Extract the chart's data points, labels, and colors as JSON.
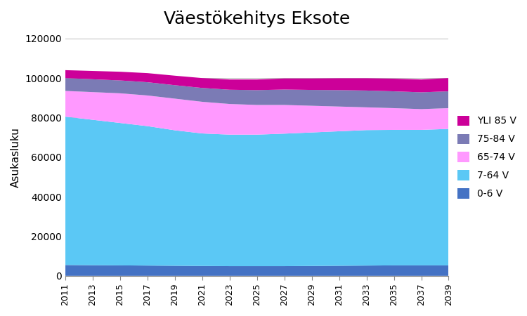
{
  "title": "Väestökehitys Eksote",
  "ylabel": "Asukasluku",
  "years": [
    2011,
    2013,
    2015,
    2017,
    2019,
    2021,
    2023,
    2025,
    2027,
    2029,
    2031,
    2033,
    2035,
    2037,
    2039
  ],
  "series": {
    "0-6 V": [
      5500,
      5400,
      5300,
      5200,
      5100,
      5000,
      4900,
      4900,
      4900,
      5000,
      5100,
      5200,
      5300,
      5300,
      5300
    ],
    "7-64 V": [
      75000,
      73500,
      72000,
      70500,
      68500,
      67000,
      66500,
      66500,
      67000,
      67500,
      68000,
      68500,
      68500,
      68500,
      69000
    ],
    "65-74 V": [
      13000,
      14000,
      15000,
      15500,
      16000,
      16000,
      15500,
      15000,
      14500,
      13500,
      12500,
      11500,
      11000,
      10500,
      10500
    ],
    "75-84 V": [
      6500,
      6500,
      6500,
      6700,
      6800,
      7000,
      7200,
      7500,
      7800,
      8000,
      8300,
      8500,
      8500,
      8500,
      8500
    ],
    "YLI 85 V": [
      4000,
      4200,
      4400,
      4600,
      4800,
      5000,
      5200,
      5400,
      5600,
      5800,
      6000,
      6200,
      6400,
      6500,
      6700
    ]
  },
  "colors": {
    "0-6 V": "#4472C4",
    "7-64 V": "#5BC8F5",
    "65-74 V": "#FF99FF",
    "75-84 V": "#7B7BB5",
    "YLI 85 V": "#CC0099"
  },
  "ylim": [
    0,
    120000
  ],
  "yticks": [
    0,
    20000,
    40000,
    60000,
    80000,
    100000,
    120000
  ],
  "background_color": "#ffffff",
  "legend_order": [
    "YLI 85 V",
    "75-84 V",
    "65-74 V",
    "7-64 V",
    "0-6 V"
  ]
}
